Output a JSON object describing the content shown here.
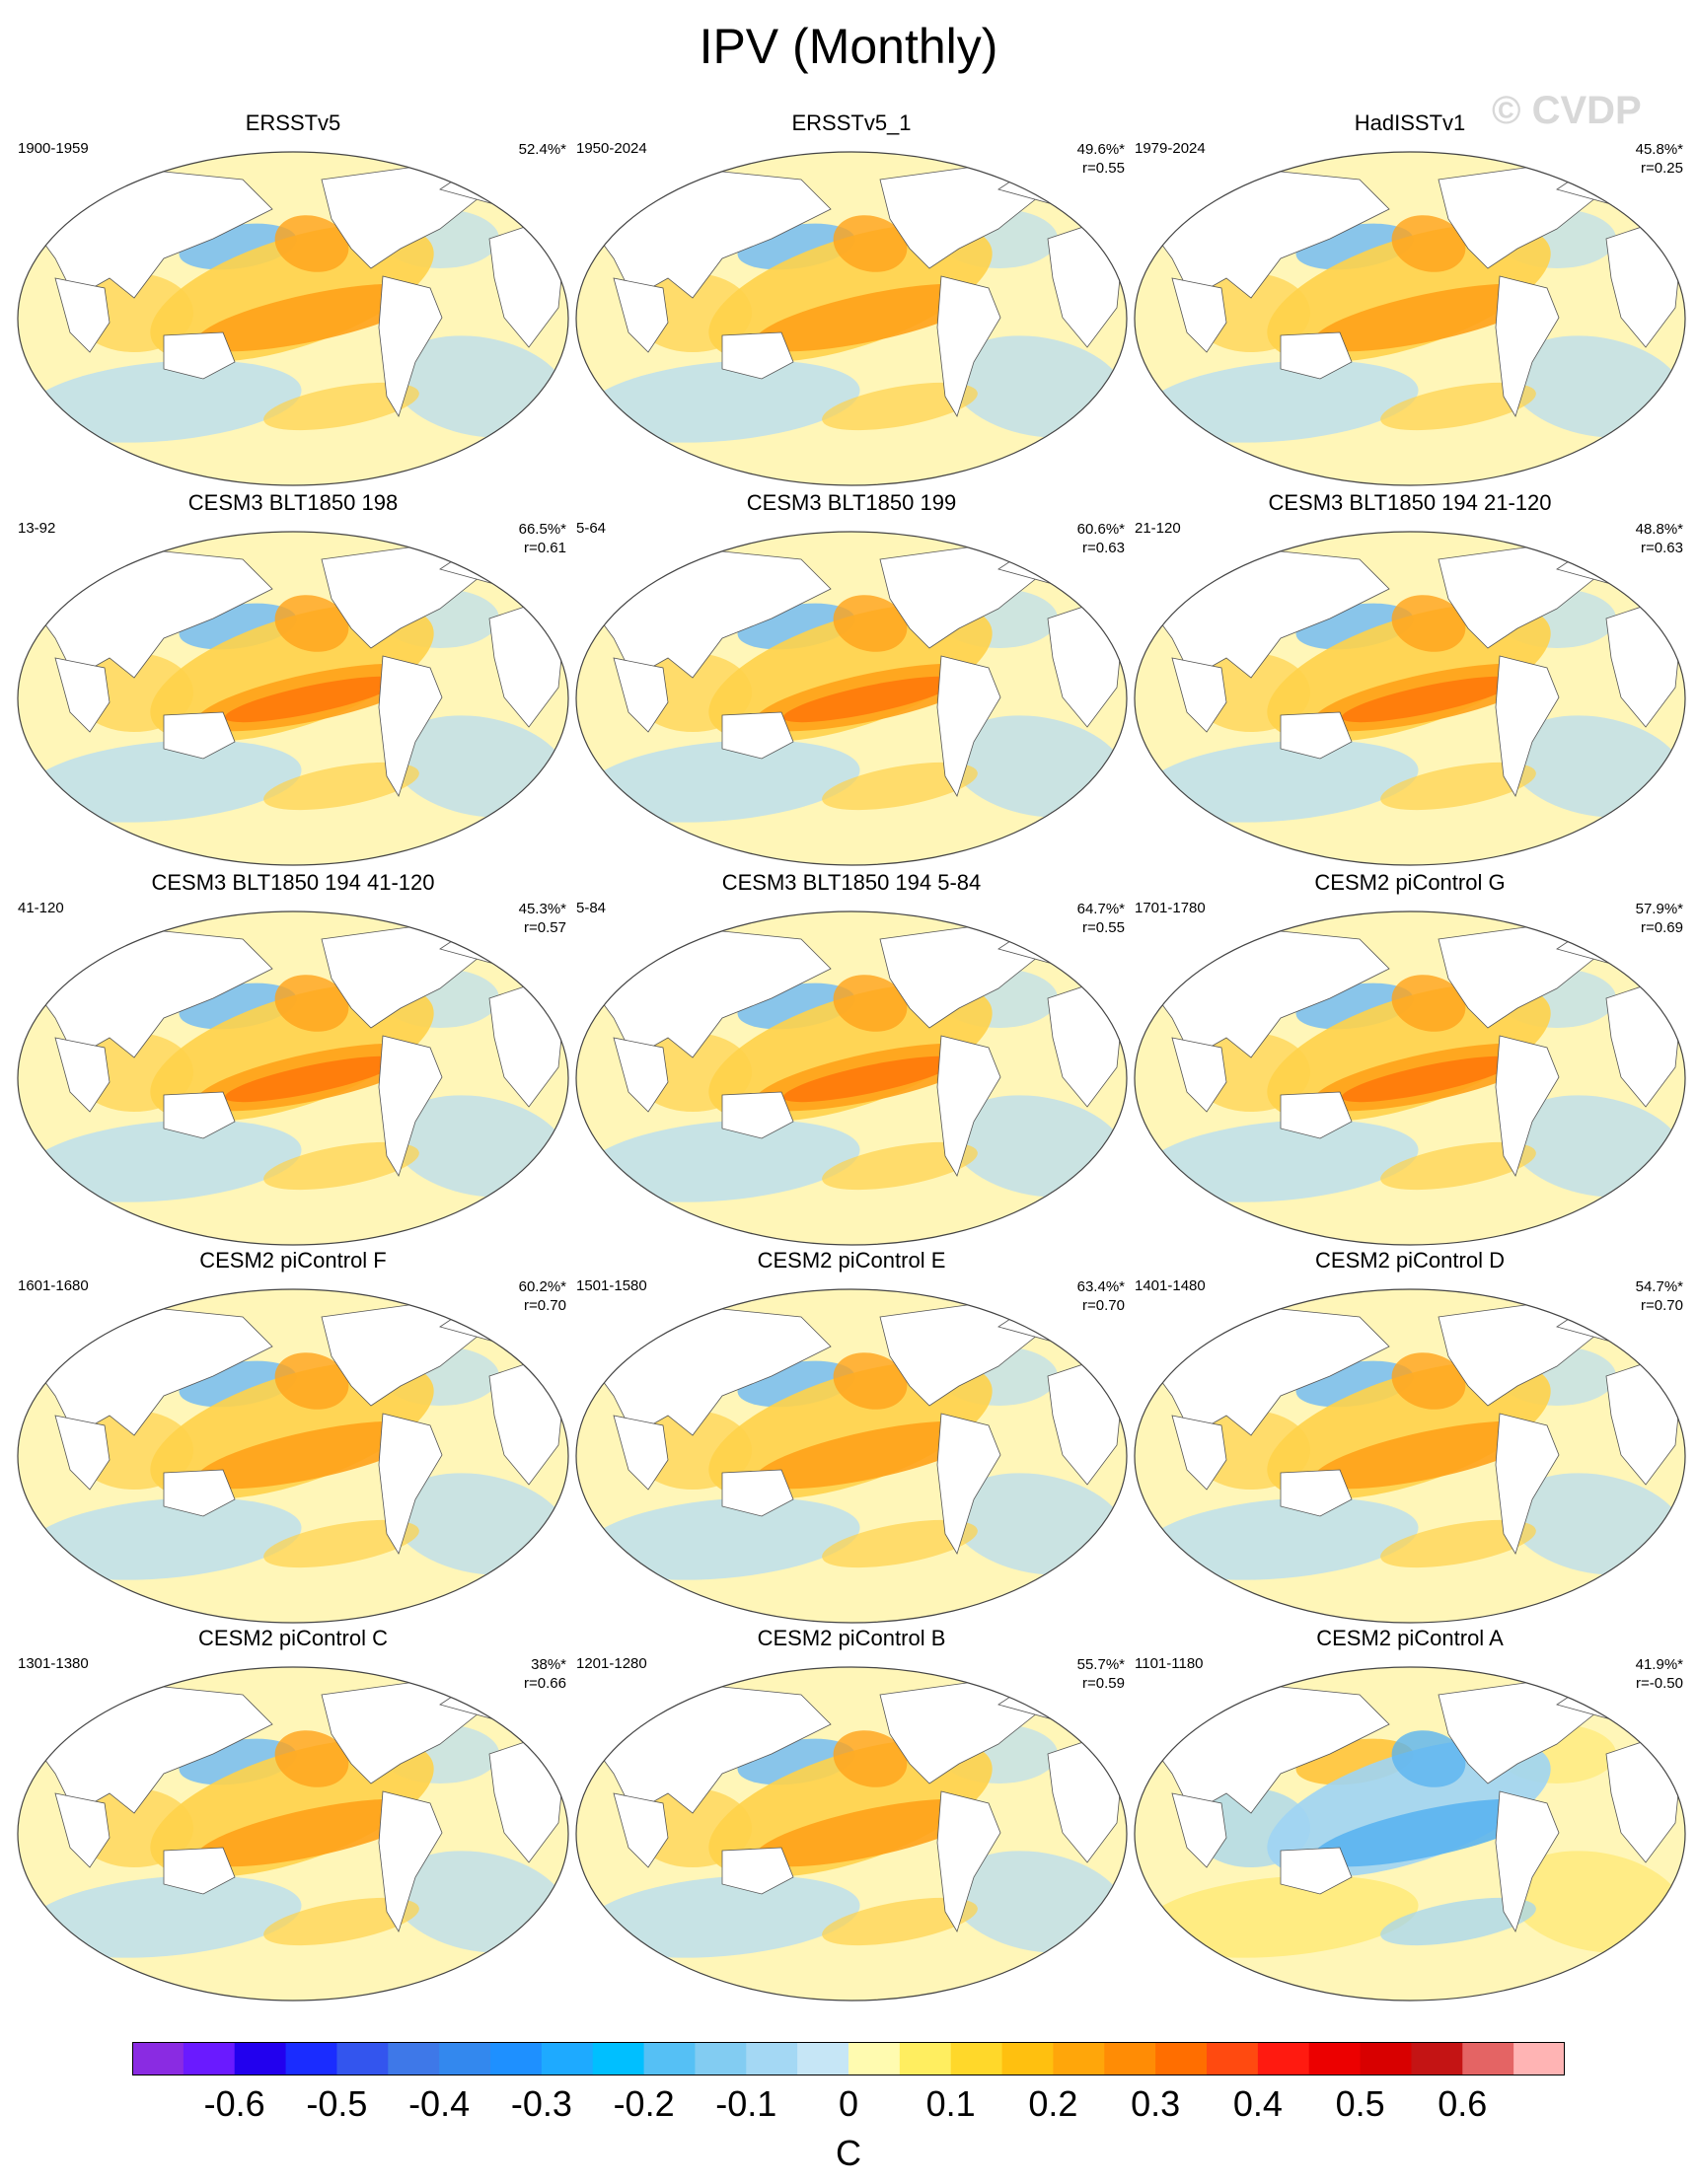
{
  "title": "IPV (Monthly)",
  "watermark": "© CVDP",
  "panels": [
    {
      "title": "ERSSTv5",
      "period": "1900-1959",
      "pct": "52.4%*",
      "r": ""
    },
    {
      "title": "ERSSTv5_1",
      "period": "1950-2024",
      "pct": "49.6%*",
      "r": "r=0.55"
    },
    {
      "title": "HadISSTv1",
      "period": "1979-2024",
      "pct": "45.8%*",
      "r": "r=0.25"
    },
    {
      "title": "CESM3 BLT1850 198",
      "period": "13-92",
      "pct": "66.5%*",
      "r": "r=0.61"
    },
    {
      "title": "CESM3 BLT1850 199",
      "period": "5-64",
      "pct": "60.6%*",
      "r": "r=0.63"
    },
    {
      "title": "CESM3 BLT1850 194 21-120",
      "period": "21-120",
      "pct": "48.8%*",
      "r": "r=0.63"
    },
    {
      "title": "CESM3 BLT1850 194 41-120",
      "period": "41-120",
      "pct": "45.3%*",
      "r": "r=0.57"
    },
    {
      "title": "CESM3 BLT1850 194 5-84",
      "period": "5-84",
      "pct": "64.7%*",
      "r": "r=0.55"
    },
    {
      "title": "CESM2 piControl G",
      "period": "1701-1780",
      "pct": "57.9%*",
      "r": "r=0.69"
    },
    {
      "title": "CESM2 piControl F",
      "period": "1601-1680",
      "pct": "60.2%*",
      "r": "r=0.70"
    },
    {
      "title": "CESM2 piControl E",
      "period": "1501-1580",
      "pct": "63.4%*",
      "r": "r=0.70"
    },
    {
      "title": "CESM2 piControl D",
      "period": "1401-1480",
      "pct": "54.7%*",
      "r": "r=0.70"
    },
    {
      "title": "CESM2 piControl C",
      "period": "1301-1380",
      "pct": "38%*",
      "r": "r=0.66"
    },
    {
      "title": "CESM2 piControl B",
      "period": "1201-1280",
      "pct": "55.7%*",
      "r": "r=0.59"
    },
    {
      "title": "CESM2 piControl A",
      "period": "1101-1180",
      "pct": "41.9%*",
      "r": "r=-0.50"
    }
  ],
  "colorbar": {
    "colors": [
      "#8a2be2",
      "#6a1aff",
      "#2200ee",
      "#1a2cff",
      "#3355ee",
      "#3e78e8",
      "#3388ee",
      "#1e90ff",
      "#1eaaff",
      "#00bfff",
      "#55c0f5",
      "#82ccf2",
      "#a4d8f4",
      "#c6e6f6",
      "#fffbb0",
      "#ffee60",
      "#ffd82a",
      "#ffc00f",
      "#ffa60a",
      "#ff8c05",
      "#ff6e00",
      "#ff4a10",
      "#ff1a10",
      "#ec0000",
      "#d80000",
      "#c41414",
      "#e46464",
      "#ffb4b4"
    ],
    "labels": [
      "-0.6",
      "-0.5",
      "-0.4",
      "-0.3",
      "-0.2",
      "-0.1",
      "0",
      "0.1",
      "0.2",
      "0.3",
      "0.4",
      "0.5",
      "0.6"
    ],
    "unit": "C"
  }
}
